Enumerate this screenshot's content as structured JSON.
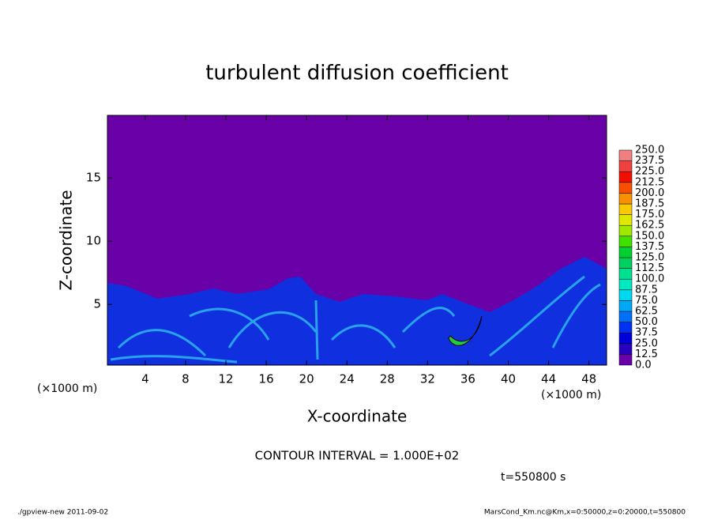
{
  "chart_data": {
    "type": "contour",
    "title": "turbulent diffusion coefficient",
    "x_label": "X-coordinate",
    "y_label": "Z-coordinate",
    "x_unit": "(×1000 m)",
    "y_unit": "(×1000 m)",
    "xlim": [
      0.25,
      49.75
    ],
    "ylim": [
      0.2,
      19.95
    ],
    "xticks": [
      4,
      8,
      12,
      16,
      20,
      24,
      28,
      32,
      36,
      40,
      44,
      48
    ],
    "yticks": [
      5,
      10,
      15
    ],
    "contour_note": "CONTOUR INTERVAL = 1.000E+02",
    "time_label": "t=550800 s",
    "colorbar": {
      "levels": [
        {
          "value": 0,
          "label": "0.0"
        },
        {
          "value": 12.5,
          "label": "12.5"
        },
        {
          "value": 25,
          "label": "25.0"
        },
        {
          "value": 37.5,
          "label": "37.5"
        },
        {
          "value": 50,
          "label": "50.0"
        },
        {
          "value": 62.5,
          "label": "62.5"
        },
        {
          "value": 75,
          "label": "75.0"
        },
        {
          "value": 87.5,
          "label": "87.5"
        },
        {
          "value": 100,
          "label": "100.0"
        },
        {
          "value": 112.5,
          "label": "112.5"
        },
        {
          "value": 125,
          "label": "125.0"
        },
        {
          "value": 137.5,
          "label": "137.5"
        },
        {
          "value": 150,
          "label": "150.0"
        },
        {
          "value": 162.5,
          "label": "162.5"
        },
        {
          "value": 175,
          "label": "175.0"
        },
        {
          "value": 187.5,
          "label": "187.5"
        },
        {
          "value": 200,
          "label": "200.0"
        },
        {
          "value": 212.5,
          "label": "212.5"
        },
        {
          "value": 225,
          "label": "225.0"
        },
        {
          "value": 237.5,
          "label": "237.5"
        },
        {
          "value": 250,
          "label": "250.0"
        }
      ],
      "colors": [
        "#6a00a8",
        "#2a00c0",
        "#0000d8",
        "#0030f0",
        "#0070f8",
        "#00a8f8",
        "#00d8f0",
        "#00e8c0",
        "#00e090",
        "#00d060",
        "#00d030",
        "#40e000",
        "#a0e800",
        "#e0e800",
        "#f8c800",
        "#f89000",
        "#f85000",
        "#f01000",
        "#f04040",
        "#f08080"
      ]
    },
    "footer_left": "./gpview-new  2011-09-02",
    "footer_right": "MarsCond_Km.nc@Km,x=0:50000,z=0:20000,t=550800"
  }
}
